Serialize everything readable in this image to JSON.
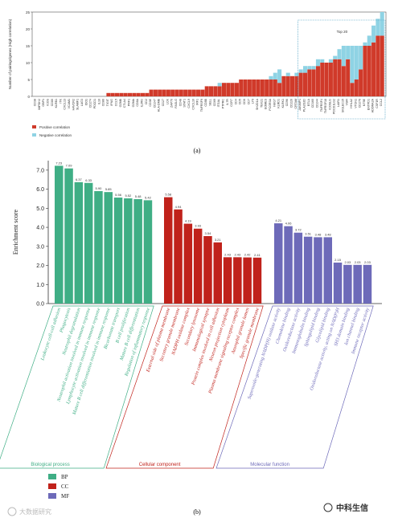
{
  "chart_data": [
    {
      "type": "bar",
      "panel_label": "(a)",
      "ylabel": "Number of pairings/genes (High correlation)",
      "ylim": [
        0,
        25
      ],
      "yticks": [
        0,
        5,
        10,
        15,
        20,
        25
      ],
      "annotation": "Top 20",
      "legend_position": "bottom-left",
      "series": [
        {
          "name": "Positive correlation",
          "color": "#d03a2a"
        },
        {
          "name": "Negative correlation",
          "color": "#8fd3e4"
        }
      ],
      "categories": [
        "CD38",
        "IMPDH2",
        "GBP1",
        "ICOS",
        "CD80",
        "KLRB1",
        "ITK",
        "CXCL13",
        "VCAM1",
        "HAVCR2",
        "SLAMF1",
        "LAG3",
        "IDO1",
        "CD274",
        "PDCD1",
        "IL10",
        "CD86",
        "TIGIT",
        "IFNG",
        "CCL5",
        "GZMB",
        "CTLA4",
        "PRF1",
        "GZMA",
        "CD8A",
        "IL2RG",
        "CD2",
        "CD3E",
        "CD247",
        "HLA-DMB",
        "CD27",
        "LCK",
        "ZAP70",
        "FASLG",
        "CD48",
        "STAT1",
        "CXCL9",
        "CXCL10",
        "IRF1",
        "TNFRSF9",
        "CD8B",
        "SELL",
        "CD69",
        "ITGAL",
        "PTPRC",
        "IL7R",
        "CCR7",
        "CD4",
        "CD5",
        "CD6",
        "CD7",
        "LY9",
        "SH2D1A",
        "TBX21",
        "EOMES",
        "FCGR3A",
        "NKG7",
        "KLRD1",
        "KLRK1",
        "CD96",
        "CD226",
        "CRTAM",
        "JAKMIP1",
        "PLA2G2D",
        "BTLA",
        "CD160",
        "CD244",
        "TNFRSF4",
        "TNFRSF18",
        "ICOSLG",
        "PDCD1LG2",
        "LAIR1",
        "SIGLEC15",
        "VSIR",
        "HHLA2",
        "VTCN1",
        "CD276",
        "NT5E",
        "ENTPD1",
        "ADORA2A",
        "CSF1R",
        "CCL2"
      ],
      "positive": [
        0,
        0,
        0,
        0,
        0,
        0,
        0,
        0,
        0,
        0,
        0,
        0,
        0,
        0,
        0,
        0,
        0,
        1,
        1,
        1,
        1,
        1,
        1,
        1,
        1,
        1,
        1,
        2,
        2,
        2,
        2,
        2,
        2,
        2,
        2,
        2,
        2,
        2,
        2,
        2,
        3,
        3,
        3,
        3,
        4,
        4,
        4,
        4,
        5,
        5,
        5,
        5,
        5,
        5,
        5,
        5,
        5,
        4,
        6,
        6,
        6,
        6,
        7,
        7,
        8,
        8,
        9,
        10,
        10,
        10,
        11,
        11,
        9,
        11,
        4,
        5,
        8,
        15,
        15,
        16,
        18,
        18
      ],
      "negative": [
        0,
        0,
        0,
        0,
        0,
        0,
        0,
        0,
        0,
        0,
        0,
        0,
        0,
        0,
        0,
        0,
        0,
        0,
        0,
        0,
        0,
        0,
        0,
        0,
        0,
        0,
        0,
        0,
        0,
        0,
        0,
        0,
        0,
        0,
        0,
        0,
        0,
        0,
        0,
        0,
        0,
        0,
        0,
        1,
        0,
        0,
        0,
        0,
        0,
        0,
        0,
        0,
        0,
        0,
        0,
        1,
        2,
        4,
        0,
        1,
        0,
        1,
        1,
        2,
        1,
        1,
        2,
        1,
        0,
        1,
        1,
        3,
        6,
        4,
        11,
        10,
        7,
        1,
        3,
        5,
        5,
        7
      ]
    },
    {
      "type": "bar",
      "panel_label": "(b)",
      "ylabel": "Enrichment score",
      "ylim": [
        0,
        7.5
      ],
      "yticks": [
        "0.0",
        "1.0",
        "2.0",
        "3.0",
        "4.0",
        "5.0",
        "6.0",
        "7.0"
      ],
      "legend_position": "bottom-left",
      "groups": [
        {
          "key": "BP",
          "name": "Biological process",
          "color": "#3fae85",
          "terms": [
            "Leukocyte cell-cell adhesion",
            "Phagocytosis",
            "Neutrophil degranulation",
            "Neutrophil activation involved in immune response",
            "Lymphocyte activation involved in immune response",
            "Mature B cell differentiation involved in immune response",
            "Bicarbonate transport",
            "B cell proliferation",
            "Mature B cell differentiation",
            "Regulation of inflammatory response"
          ],
          "values": [
            7.23,
            7.09,
            6.37,
            6.33,
            5.9,
            5.85,
            5.56,
            5.52,
            5.48,
            5.42
          ]
        },
        {
          "key": "CC",
          "name": "Cellular component",
          "color": "#c0221b",
          "terms": [
            "External side of plasma membrane",
            "Secretory granule membrane",
            "NADPH oxidase complex",
            "Secondary lysosome",
            "Immunological synapse",
            "Protein complex involved in cell adhesion",
            "Neuron projection cytoplasm",
            "Plasma membrane signaling receptor complex",
            "Azurophil granule lumen",
            "Specific granule membrane"
          ],
          "values": [
            5.58,
            4.94,
            4.19,
            3.93,
            3.54,
            3.21,
            2.43,
            2.43,
            2.42,
            2.41
          ]
        },
        {
          "key": "MF",
          "name": "Molecular function",
          "color": "#6d6ab9",
          "terms": [
            "Superoxide-generating NADP(H) oxidase activity",
            "Chemokine binding",
            "Oxidoreductase activity",
            "Immunoglobulin binding",
            "Sphingolipid binding",
            "Glycolipid binding",
            "Oxidoreductase activity, acting on NAD(P)H",
            "SH3 domain binding",
            "Ion channel binding",
            "Immune receptor activity"
          ],
          "values": [
            4.21,
            4.06,
            3.72,
            3.51,
            3.48,
            3.48,
            2.15,
            2.03,
            2.03,
            2.03
          ]
        }
      ]
    }
  ],
  "watermark_left": "大数据研究",
  "watermark_right": "中科生信"
}
